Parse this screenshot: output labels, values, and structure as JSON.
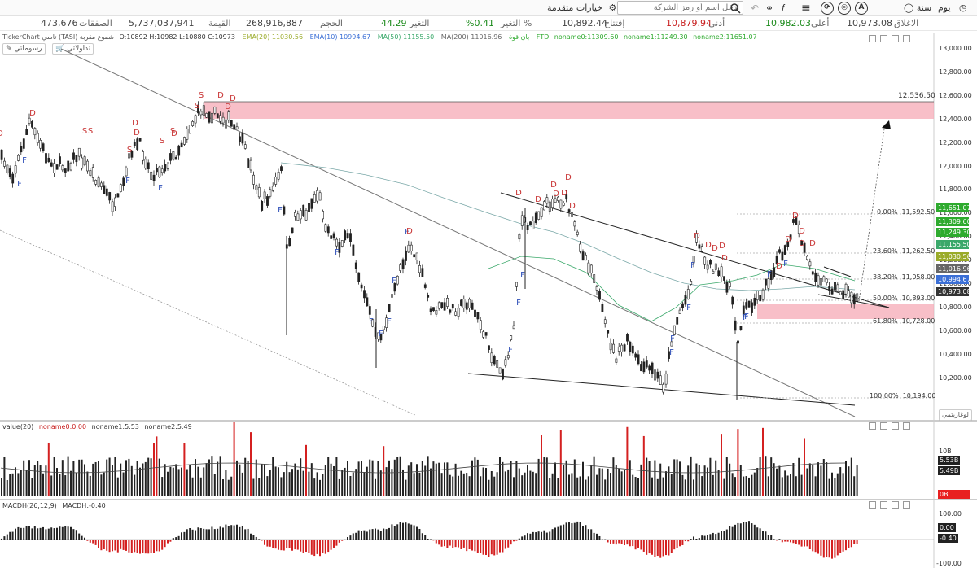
{
  "toolbar": {
    "period_day": "يوم",
    "period_year": "سنة",
    "advanced_options": "خيارات متقدمة",
    "search_placeholder": "ادخل اسم أو رمز الشركة"
  },
  "quote": {
    "close_label": "الاغلاق",
    "close_value": "10,973.08",
    "high_label": "أعلى",
    "high_value": "10,982.03",
    "low_label": "أدنى",
    "low_value": "10,879.94",
    "open_label": "إفتتاح",
    "open_value": "10,892.44",
    "change_pct_label": "التغير %",
    "change_pct_value": "%0.41",
    "change_label": "التغير",
    "change_value": "44.29",
    "volume_label": "الحجم",
    "volume_value": "268,916,887",
    "value_label": "القيمة",
    "value_value": "5,737,037,941",
    "trades_label": "الصفقات",
    "trades_value": "473,676"
  },
  "chart_header": {
    "brand": "TickerChart",
    "symbol": "تاسي (TASI)",
    "chart_type": "شموع مقربة",
    "ohlc": "O:10892  H:10982  L:10880  C:10973",
    "ema20": "EMA(20)   11030.56",
    "ema10": "EMA(10)   10994.67",
    "ma50": "MA(50)   11155.50",
    "ma200": "MA(200)   11016.96",
    "ftd_label": "FTD",
    "noname0": "noname0:11309.60",
    "noname1": "noname1:11249.30",
    "noname2": "noname2:11651.07",
    "misc_label": "بان قوة",
    "drawings_btn": "رسوماتي",
    "trades_btn": "تداولاتي"
  },
  "price_axis": {
    "labels": [
      "13,000.00",
      "12,800.00",
      "12,600.00",
      "12,400.00",
      "12,200.00",
      "12,000.00",
      "11,800.00",
      "11,600.00",
      "11,400.00",
      "11,200.00",
      "11,000.00",
      "10,800.00",
      "10,600.00",
      "10,400.00",
      "10,200.00"
    ],
    "tags": [
      {
        "text": "11,651.07",
        "color": "#2eaa2e"
      },
      {
        "text": "11,309.60",
        "color": "#2eaa2e"
      },
      {
        "text": "11,249.30",
        "color": "#2eaa2e"
      },
      {
        "text": "11,155.50",
        "color": "#3aa86a"
      },
      {
        "text": "11,030.56",
        "color": "#9aab2a"
      },
      {
        "text": "11,016.96",
        "color": "#666666"
      },
      {
        "text": "10,994.67",
        "color": "#3b6fd6"
      },
      {
        "text": "10,973.08",
        "color": "#333333"
      }
    ],
    "log_button": "لوغاريتمي"
  },
  "annotations": {
    "resistance_label": "12,536.50",
    "fib": [
      {
        "pct": "0.00%",
        "val": "11,592.50"
      },
      {
        "pct": "23.60%",
        "val": "11,262.50"
      },
      {
        "pct": "38.20%",
        "val": "11,058.00"
      },
      {
        "pct": "50.00%",
        "val": "10,893.00"
      },
      {
        "pct": "61.80%",
        "val": "10,728.00"
      },
      {
        "pct": "100.00%",
        "val": "10,194.00"
      }
    ]
  },
  "volume_pane": {
    "header_name": "value(20)",
    "noname0": "noname0:0.00",
    "noname1": "noname1:5.53",
    "noname2": "noname2:5.49",
    "axis_top": "10B",
    "tag1": "5.53B",
    "tag2": "5.49B",
    "tag_zero": "0B"
  },
  "macd_pane": {
    "header_name": "MACDH(26,12,9)",
    "value": "MACDH:-0.40",
    "axis_top": "100.00",
    "axis_zero": "0.00",
    "axis_bottom": "-100.00",
    "tag_value": "-0.40"
  },
  "colors": {
    "candle": "#222222",
    "signal_d": "#c83232",
    "signal_f": "#2e4fb8",
    "zone": "#f5aab6",
    "macd_pos": "#222222",
    "macd_neg": "#d42020",
    "vol_red": "#d42020"
  },
  "chart_data": {
    "type": "candlestick",
    "yscale": "log",
    "price_range": [
      10150,
      13050
    ],
    "indicators": [
      "EMA(20)",
      "EMA(10)",
      "MA(50)",
      "MA(200)"
    ],
    "trend_extremes_approx": [
      {
        "x": 0.02,
        "y": 12350
      },
      {
        "x": 0.22,
        "y": 12450
      },
      {
        "x": 0.3,
        "y": 11800
      },
      {
        "x": 0.38,
        "y": 11250
      },
      {
        "x": 0.46,
        "y": 10950
      },
      {
        "x": 0.54,
        "y": 11350
      },
      {
        "x": 0.6,
        "y": 11700
      },
      {
        "x": 0.68,
        "y": 10500
      },
      {
        "x": 0.76,
        "y": 11520
      },
      {
        "x": 0.8,
        "y": 10200
      },
      {
        "x": 0.86,
        "y": 11600
      },
      {
        "x": 0.92,
        "y": 10900
      },
      {
        "x": 0.95,
        "y": 10973
      }
    ]
  }
}
